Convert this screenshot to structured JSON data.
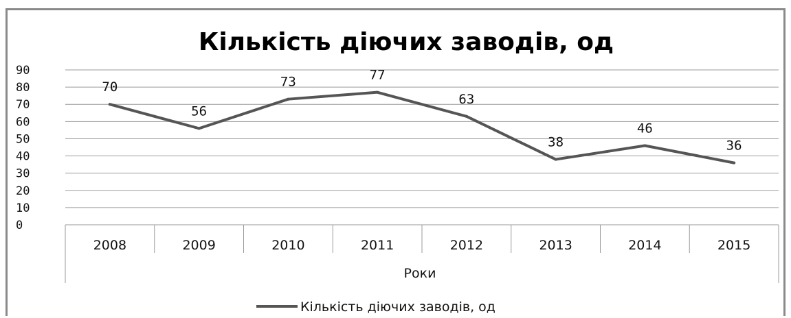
{
  "chart_data": {
    "type": "line",
    "title": "Кількість діючих заводів, од",
    "xlabel": "Роки",
    "ylabel": "",
    "categories": [
      "2008",
      "2009",
      "2010",
      "2011",
      "2012",
      "2013",
      "2014",
      "2015"
    ],
    "series": [
      {
        "name": "Кількість діючих заводів, од",
        "values": [
          70,
          56,
          73,
          77,
          63,
          38,
          46,
          36
        ]
      }
    ],
    "ylim": [
      0,
      90
    ],
    "yticks": [
      "0",
      "10",
      "20",
      "30",
      "40",
      "50",
      "60",
      "70",
      "80",
      "90"
    ],
    "grid": true,
    "data_labels": true,
    "legend": "bottom",
    "line_color": "#555555"
  }
}
